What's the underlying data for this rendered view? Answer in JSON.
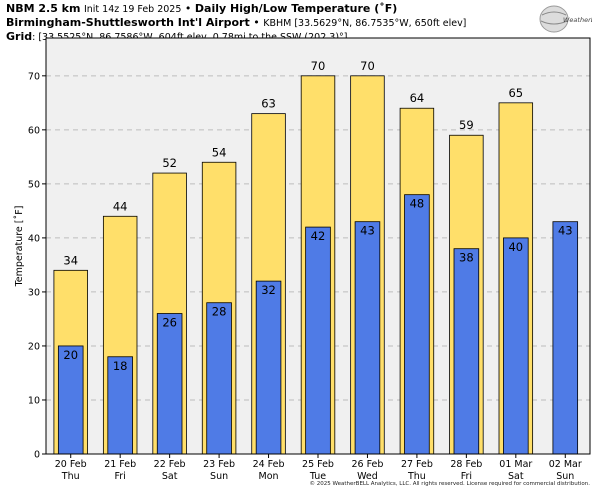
{
  "header": {
    "line1_bold": "NBM 2.5 km",
    "line1_init": "Init 14z 19 Feb 2025",
    "line1_sep": "•",
    "line1_title": "Daily High/Low Temperature (˚F)",
    "line2_bold": "Birmingham-Shuttlesworth Int'l Airport",
    "line2_sep": "•",
    "line2_rest": "KBHM [33.5629°N, 86.7535°W, 650ft elev]",
    "line3_bold": "Grid",
    "line3_rest": ": [33.5525°N, 86.7586°W, 604ft elev, 0.78mi to the SSW (202.3)°]"
  },
  "logo": {
    "text": "WeatherBELL"
  },
  "copyright": "© 2025 WeatherBELL Analytics, LLC. All rights reserved. License required for commercial distribution.",
  "colors": {
    "high_bar": "#FFDF6A",
    "low_bar": "#4F7BE6",
    "plot_bg": "#F0F0F0",
    "grid": "#BDBDBD"
  },
  "chart_data": {
    "type": "bar",
    "ylabel": "Temperature [˚F]",
    "ylim": [
      0,
      77
    ],
    "yticks": [
      0,
      10,
      20,
      30,
      40,
      50,
      60,
      70
    ],
    "grid": true,
    "dates": [
      "20 Feb",
      "21 Feb",
      "22 Feb",
      "23 Feb",
      "24 Feb",
      "25 Feb",
      "26 Feb",
      "27 Feb",
      "28 Feb",
      "01 Mar",
      "02 Mar"
    ],
    "days": [
      "Thu",
      "Fri",
      "Sat",
      "Sun",
      "Mon",
      "Tue",
      "Wed",
      "Thu",
      "Fri",
      "Sat",
      "Sun"
    ],
    "series": [
      {
        "key": "high",
        "values": [
          34,
          44,
          52,
          54,
          63,
          70,
          70,
          64,
          59,
          65,
          null
        ],
        "labels": [
          "34",
          "44",
          "52",
          "54",
          "63",
          "70",
          "70",
          "64",
          "59",
          "65",
          ""
        ]
      },
      {
        "key": "low",
        "values": [
          20,
          18,
          26,
          28,
          32,
          42,
          43,
          48,
          38,
          40,
          43
        ],
        "labels": [
          "20",
          "18",
          "26",
          "28",
          "32",
          "42",
          "43",
          "48",
          "38",
          "40",
          "43"
        ]
      }
    ]
  }
}
